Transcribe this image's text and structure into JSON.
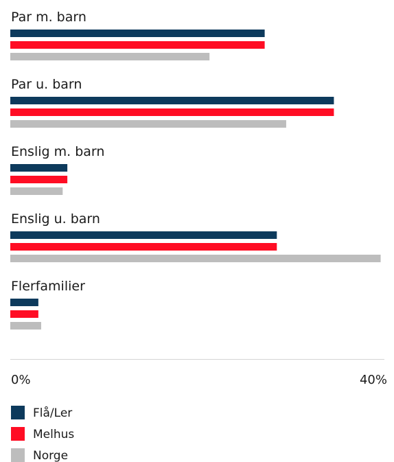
{
  "chart_data": {
    "type": "bar",
    "orientation": "horizontal",
    "categories": [
      "Par m. barn",
      "Par u. barn",
      "Enslig m. barn",
      "Enslig u. barn",
      "Flerfamilier"
    ],
    "series": [
      {
        "name": "Flå/Ler",
        "color": "#0d3a5c",
        "values": [
          27.2,
          34.6,
          6.1,
          28.5,
          3.0
        ]
      },
      {
        "name": "Melhus",
        "color": "#ff0d24",
        "values": [
          27.2,
          34.6,
          6.1,
          28.5,
          3.0
        ]
      },
      {
        "name": "Norge",
        "color": "#bdbdbd",
        "values": [
          21.3,
          29.5,
          5.6,
          39.6,
          3.3
        ]
      }
    ],
    "xlim": [
      0,
      40
    ],
    "tick_labels": [
      "0%",
      "40%"
    ],
    "legend": {
      "placement": "bottom-left",
      "items": [
        "Flå/Ler",
        "Melhus",
        "Norge"
      ]
    },
    "grid": false
  }
}
